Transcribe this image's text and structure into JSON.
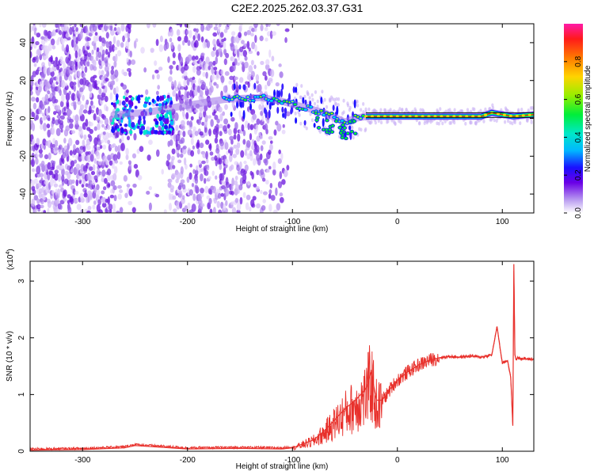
{
  "title": "C2E2.2025.262.03.37.G31",
  "chart_data": [
    {
      "type": "heatmap",
      "xlabel": "Height of straight line (km)",
      "ylabel": "Frequency (Hz)",
      "xlim": [
        -350,
        130
      ],
      "ylim": [
        -50,
        50
      ],
      "xticks": [
        -300,
        -200,
        -100,
        0,
        100
      ],
      "yticks": [
        -40,
        -20,
        0,
        20,
        40
      ],
      "colorbar": {
        "label": "Normalized spectral amplitude",
        "range": [
          0,
          1
        ],
        "ticks": [
          "0.0",
          "0.2",
          "0.4",
          "0.6",
          "0.8"
        ],
        "tick_values": [
          0.0,
          0.2,
          0.4,
          0.6,
          0.8
        ]
      },
      "ridge": {
        "x": [
          -270,
          -240,
          -210,
          -165,
          -130,
          -110,
          -90,
          -70,
          -50,
          -40,
          -30,
          0,
          50,
          80,
          90,
          100,
          110,
          130
        ],
        "y": [
          2,
          3,
          6,
          10,
          11,
          9,
          6,
          3,
          -2,
          0,
          1,
          1,
          1,
          1,
          3,
          2,
          1,
          2
        ]
      }
    },
    {
      "type": "line",
      "xlabel": "Height of straight line (km)",
      "ylabel": "SNR (10 * v/v)",
      "y_multiplier": "(x10^4)",
      "y_multiplier_base": "(x10",
      "y_multiplier_exp": "4",
      "xlim": [
        -350,
        130
      ],
      "ylim": [
        0,
        3.35
      ],
      "xticks": [
        -300,
        -200,
        -100,
        0,
        100
      ],
      "yticks": [
        0,
        1,
        2,
        3
      ],
      "color": "#e8302b",
      "series": [
        {
          "x": [
            -350,
            -300,
            -260,
            -250,
            -200,
            -150,
            -110,
            -100,
            -80,
            -70,
            -60,
            -50,
            -40,
            -30,
            -25,
            -20,
            -15,
            -10,
            -5,
            0,
            10,
            20,
            30,
            40,
            50,
            60,
            70,
            80,
            90,
            95,
            98,
            100,
            105,
            108,
            110,
            111,
            112,
            113,
            115,
            120,
            130
          ],
          "y": [
            0.02,
            0.03,
            0.06,
            0.1,
            0.04,
            0.05,
            0.04,
            0.06,
            0.2,
            0.35,
            0.55,
            0.75,
            0.9,
            1.1,
            1.4,
            0.9,
            0.9,
            1.0,
            1.15,
            1.25,
            1.4,
            1.52,
            1.6,
            1.65,
            1.67,
            1.66,
            1.68,
            1.66,
            1.7,
            2.2,
            1.8,
            1.55,
            1.6,
            1.3,
            0.45,
            3.3,
            1.7,
            1.62,
            1.65,
            1.63,
            1.62
          ]
        }
      ]
    }
  ]
}
